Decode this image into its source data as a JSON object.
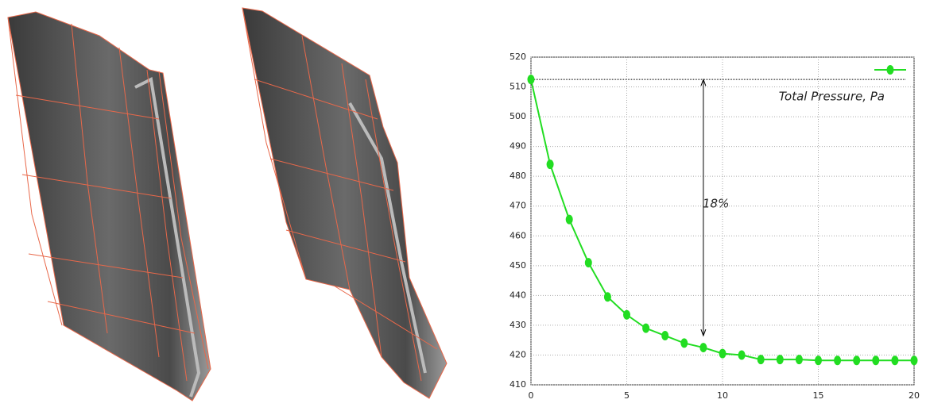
{
  "chart_data": {
    "type": "line",
    "x": [
      0,
      1,
      2,
      3,
      4,
      5,
      6,
      7,
      8,
      9,
      10,
      11,
      12,
      13,
      14,
      15,
      16,
      17,
      18,
      19,
      20
    ],
    "series": [
      {
        "name": "Total Pressure, Pa",
        "color": "#22dd22",
        "values": [
          512.5,
          484,
          465.5,
          451,
          439.5,
          433.5,
          429,
          426.5,
          424,
          422.5,
          420.5,
          420,
          418.5,
          418.5,
          418.5,
          418.2,
          418.2,
          418.2,
          418.2,
          418.2,
          418.2
        ]
      }
    ],
    "annotations": [
      "18%"
    ],
    "xlim": [
      0,
      20
    ],
    "xticks": [
      0,
      5,
      10,
      15,
      20
    ],
    "ylim": [
      410,
      520
    ],
    "yticks": [
      410,
      420,
      430,
      440,
      450,
      460,
      470,
      480,
      490,
      500,
      510,
      520
    ],
    "grid": true,
    "legend": "upper right"
  }
}
